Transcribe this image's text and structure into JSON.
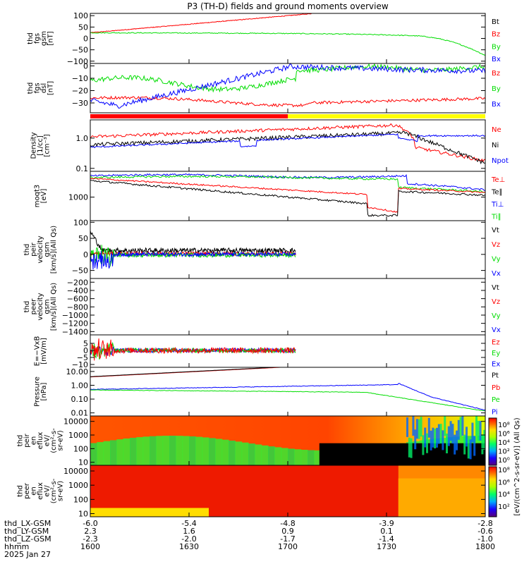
{
  "title": "P3 (TH-D) fields and ground moments overview",
  "colors": {
    "red": "#ff0000",
    "green": "#00dd00",
    "blue": "#0000ff",
    "black": "#000000",
    "yellow": "#ffff00"
  },
  "chart_data": {
    "type": "line",
    "x_ticks": [
      "1600",
      "1630",
      "1700",
      "1730",
      "1800"
    ],
    "footer": {
      "rows": [
        {
          "label": "thd_LX-GSM",
          "values": [
            "-6.0",
            "-5.4",
            "-4.8",
            "-3.9",
            "-2.8"
          ]
        },
        {
          "label": "thd_LY-GSM",
          "values": [
            "2.3",
            "1.6",
            "0.9",
            "0.1",
            "-0.6"
          ]
        },
        {
          "label": "thd_LZ-GSM",
          "values": [
            "-2.3",
            "-2.0",
            "-1.7",
            "-1.4",
            "-1.0"
          ]
        },
        {
          "label": "hhmm",
          "values": [
            "1600",
            "1630",
            "1700",
            "1730",
            "1800"
          ]
        }
      ],
      "date": "2025 Jan 27"
    },
    "panels": [
      {
        "id": "fgs-gsm",
        "ylabel": [
          "thd",
          "fgs",
          "gsm",
          "[nT]"
        ],
        "yticks": [
          {
            "v": 100,
            "l": "100"
          },
          {
            "v": 50,
            "l": "50"
          },
          {
            "v": 0,
            "l": "0"
          },
          {
            "v": -50,
            "l": "−50"
          },
          {
            "v": -100,
            "l": "−100"
          }
        ],
        "ylim": [
          -110,
          110
        ],
        "log": false,
        "legend": [
          {
            "t": "Bt",
            "c": "black"
          },
          {
            "t": "Bz",
            "c": "red"
          },
          {
            "t": "By",
            "c": "green"
          },
          {
            "t": "Bx",
            "c": "blue"
          }
        ]
      },
      {
        "id": "fgs-dsl",
        "ylabel": [
          "thd",
          "fgs",
          "dsl",
          "[nT]"
        ],
        "yticks": [
          {
            "v": 0,
            "l": "0"
          },
          {
            "v": -10,
            "l": "−10"
          },
          {
            "v": -20,
            "l": "−20"
          },
          {
            "v": -30,
            "l": "−30"
          }
        ],
        "ylim": [
          -38,
          2
        ],
        "log": false,
        "legend": [
          {
            "t": "Bz",
            "c": "red"
          },
          {
            "t": "By",
            "c": "green"
          },
          {
            "t": "Bx",
            "c": "blue"
          }
        ]
      },
      {
        "id": "density",
        "ylabel": [
          "Density",
          "[1/cc]",
          "[cm⁻³]"
        ],
        "yticks": [
          {
            "v": 1,
            "l": "1.0"
          },
          {
            "v": 0.1,
            "l": "0.1"
          }
        ],
        "ylim": [
          0.08,
          4
        ],
        "log": true,
        "legend": [
          {
            "t": "Ne",
            "c": "red"
          },
          {
            "t": "Ni",
            "c": "black"
          },
          {
            "t": "Npot",
            "c": "blue"
          }
        ]
      },
      {
        "id": "temp",
        "ylabel": [
          "moqt3",
          "[eV]"
        ],
        "yticks": [
          {
            "v": 1000,
            "l": "1000"
          }
        ],
        "ylim": [
          150,
          8000
        ],
        "log": true,
        "legend": [
          {
            "t": "Te⊥",
            "c": "red"
          },
          {
            "t": "Te∥",
            "c": "black"
          },
          {
            "t": "Ti⊥",
            "c": "blue"
          },
          {
            "t": "Ti∥",
            "c": "green"
          }
        ]
      },
      {
        "id": "peir-vel",
        "ylabel": [
          "thd",
          "peir",
          "velocity",
          "gsm",
          "[km/s](All Qs)"
        ],
        "yticks": [
          {
            "v": 100,
            "l": "100"
          },
          {
            "v": 50,
            "l": "50"
          },
          {
            "v": 0,
            "l": "0"
          },
          {
            "v": -50,
            "l": "−50"
          }
        ],
        "ylim": [
          -75,
          105
        ],
        "log": false,
        "legend": [
          {
            "t": "Vt",
            "c": "black"
          },
          {
            "t": "Vz",
            "c": "red"
          },
          {
            "t": "Vy",
            "c": "green"
          },
          {
            "t": "Vx",
            "c": "blue"
          }
        ]
      },
      {
        "id": "peer-vel",
        "ylabel": [
          "thd",
          "peer",
          "velocity",
          "gsm",
          "[km/s](All Qs)"
        ],
        "yticks": [
          {
            "v": -200,
            "l": "−200"
          },
          {
            "v": -400,
            "l": "−400"
          },
          {
            "v": -600,
            "l": "−600"
          },
          {
            "v": -800,
            "l": "−800"
          },
          {
            "v": -1000,
            "l": "−1000"
          },
          {
            "v": -1200,
            "l": "−1200"
          },
          {
            "v": -1400,
            "l": "−1400"
          }
        ],
        "ylim": [
          -1480,
          -110
        ],
        "log": false,
        "legend": [
          {
            "t": "Vt",
            "c": "black"
          },
          {
            "t": "Vz",
            "c": "red"
          },
          {
            "t": "Vy",
            "c": "green"
          },
          {
            "t": "Vx",
            "c": "blue"
          }
        ]
      },
      {
        "id": "efield",
        "ylabel": [
          "E=−VxB",
          "[mV/m]"
        ],
        "yticks": [
          {
            "v": 5,
            "l": "5"
          },
          {
            "v": 0,
            "l": "0"
          },
          {
            "v": -5,
            "l": "−5"
          },
          {
            "v": -10,
            "l": "−10"
          }
        ],
        "ylim": [
          -12,
          11
        ],
        "log": false,
        "legend": [
          {
            "t": "Ez",
            "c": "red"
          },
          {
            "t": "Ey",
            "c": "green"
          },
          {
            "t": "Ex",
            "c": "blue"
          }
        ]
      },
      {
        "id": "pressure",
        "ylabel": [
          "Pressure",
          "[nPa]"
        ],
        "yticks": [
          {
            "v": 10,
            "l": "10.00"
          },
          {
            "v": 1,
            "l": "1.00"
          },
          {
            "v": 0.1,
            "l": "0.10"
          },
          {
            "v": 0.01,
            "l": "0.01"
          }
        ],
        "ylim": [
          0.006,
          20
        ],
        "log": true,
        "legend": [
          {
            "t": "Pt",
            "c": "black"
          },
          {
            "t": "Pb",
            "c": "red"
          },
          {
            "t": "Pe",
            "c": "green"
          },
          {
            "t": "Pi",
            "c": "blue"
          }
        ]
      },
      {
        "id": "peir-en",
        "ylabel": [
          "thd",
          "peir",
          "en",
          "eflux",
          "eV/",
          "(cm²-s-",
          "sr-eV)"
        ],
        "yticks": [
          {
            "v": 10000,
            "l": "10000"
          },
          {
            "v": 1000,
            "l": "1000"
          },
          {
            "v": 100,
            "l": "100"
          },
          {
            "v": 10,
            "l": "10"
          }
        ],
        "ylim": [
          6,
          25000
        ],
        "log": true,
        "spectrogram": true,
        "legend": []
      },
      {
        "id": "peer-en",
        "ylabel": [
          "thd",
          "peer",
          "en",
          "eflux",
          "eV/",
          "(cm²-s-",
          "sr-eV)"
        ],
        "yticks": [
          {
            "v": 10000,
            "l": "10000"
          },
          {
            "v": 1000,
            "l": "1000"
          },
          {
            "v": 100,
            "l": "100"
          },
          {
            "v": 10,
            "l": "10"
          }
        ],
        "ylim": [
          6,
          25000
        ],
        "log": true,
        "spectrogram": true,
        "legend": []
      }
    ],
    "colorbar": {
      "label": "[eV/(cm^2-s-sr-eV)] (All Qs)",
      "ticks_ion": [
        "10⁸",
        "10⁶",
        "10⁴",
        "10²",
        "10⁰"
      ],
      "ticks_electron": [
        "10⁸",
        "10⁶",
        "10⁴",
        "10²"
      ]
    },
    "state_bar": {
      "segments": [
        {
          "from": "1600",
          "to": "1700",
          "color": "red"
        },
        {
          "from": "1700",
          "to": "1800",
          "color": "yellow"
        }
      ]
    }
  }
}
